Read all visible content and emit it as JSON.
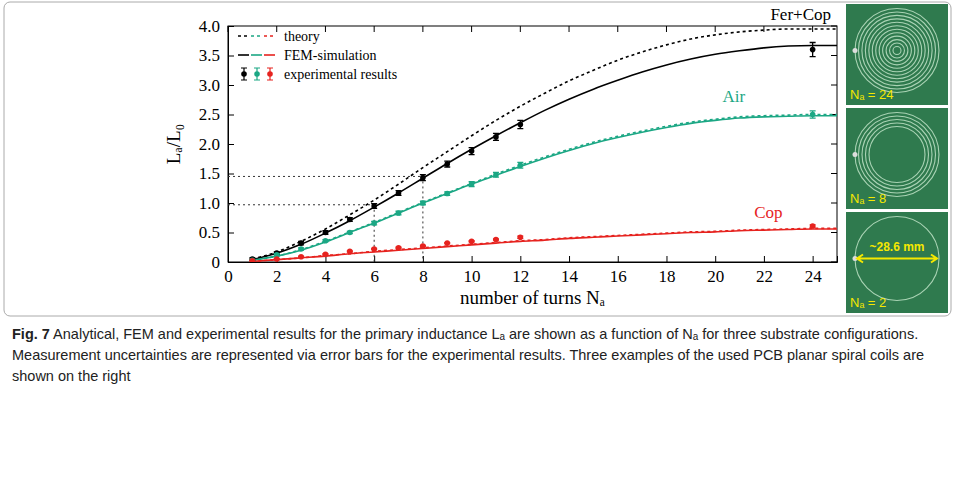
{
  "chart_data": {
    "type": "line",
    "x_label": "number of turns Nₐ",
    "y_label": "Lₐ/L₀",
    "xlim": [
      0,
      25
    ],
    "ylim": [
      0,
      4
    ],
    "xticks": [
      0,
      2,
      4,
      6,
      8,
      10,
      12,
      14,
      16,
      18,
      20,
      22,
      24
    ],
    "yticks": [
      0,
      0.5,
      {
        "value": 1,
        "label": "1.0"
      },
      1.5,
      {
        "value": 2,
        "label": "2.0"
      },
      2.5,
      {
        "value": 3,
        "label": "3.0"
      },
      3.5,
      {
        "value": 4,
        "label": "4.0"
      }
    ],
    "legend": "upper left",
    "groups": [
      {
        "name": "Fer+Cop",
        "color": "#000000"
      },
      {
        "name": "Air",
        "color": "#1ba784"
      },
      {
        "name": "Cop",
        "color": "#e6231f"
      }
    ],
    "guides": [
      {
        "x": 6,
        "y": 0.97
      },
      {
        "x": 8,
        "y": 1.45
      }
    ],
    "series": [
      {
        "name": "theory",
        "type": "line",
        "line_style": "dotted",
        "curves": [
          {
            "color": "#000000",
            "x": [
              1,
              2,
              3,
              4,
              5,
              6,
              7,
              8,
              9,
              10,
              11,
              12,
              13,
              14,
              15,
              16,
              17,
              18,
              19,
              20,
              21,
              22,
              23,
              24,
              25
            ],
            "values": [
              0.05,
              0.17,
              0.35,
              0.56,
              0.8,
              1.05,
              1.32,
              1.6,
              1.87,
              2.14,
              2.4,
              2.64,
              2.86,
              3.07,
              3.25,
              3.42,
              3.56,
              3.68,
              3.78,
              3.85,
              3.9,
              3.93,
              3.95,
              3.95,
              3.95
            ]
          },
          {
            "color": "#1ba784",
            "x": [
              1,
              2,
              3,
              4,
              5,
              6,
              7,
              8,
              9,
              10,
              11,
              12,
              13,
              14,
              15,
              16,
              17,
              18,
              19,
              20,
              21,
              22,
              23,
              24,
              25
            ],
            "values": [
              0.03,
              0.1,
              0.21,
              0.35,
              0.51,
              0.67,
              0.84,
              1.01,
              1.17,
              1.33,
              1.49,
              1.64,
              1.78,
              1.91,
              2.03,
              2.13,
              2.22,
              2.3,
              2.37,
              2.42,
              2.46,
              2.48,
              2.49,
              2.5,
              2.5
            ]
          },
          {
            "color": "#e6231f",
            "x": [
              1,
              2,
              3,
              4,
              5,
              6,
              7,
              8,
              9,
              10,
              11,
              12,
              13,
              14,
              15,
              16,
              17,
              18,
              19,
              20,
              21,
              22,
              23,
              24,
              25
            ],
            "values": [
              0.01,
              0.04,
              0.07,
              0.11,
              0.14,
              0.18,
              0.21,
              0.24,
              0.27,
              0.3,
              0.33,
              0.36,
              0.38,
              0.41,
              0.43,
              0.45,
              0.47,
              0.49,
              0.51,
              0.52,
              0.54,
              0.55,
              0.56,
              0.57,
              0.57
            ]
          }
        ]
      },
      {
        "name": "FEM-simulation",
        "type": "line",
        "line_style": "solid",
        "curves": [
          {
            "color": "#000000",
            "x": [
              1,
              2,
              3,
              4,
              5,
              6,
              7,
              8,
              9,
              10,
              11,
              12,
              13,
              14,
              15,
              16,
              17,
              18,
              19,
              20,
              21,
              22,
              23,
              24,
              25
            ],
            "values": [
              0.04,
              0.15,
              0.3,
              0.49,
              0.7,
              0.93,
              1.17,
              1.42,
              1.67,
              1.91,
              2.14,
              2.36,
              2.57,
              2.76,
              2.93,
              3.08,
              3.22,
              3.34,
              3.44,
              3.52,
              3.58,
              3.63,
              3.66,
              3.67,
              3.67
            ]
          },
          {
            "color": "#1ba784",
            "x": [
              1,
              2,
              3,
              4,
              5,
              6,
              7,
              8,
              9,
              10,
              11,
              12,
              13,
              14,
              15,
              16,
              17,
              18,
              19,
              20,
              21,
              22,
              23,
              24,
              25
            ],
            "values": [
              0.03,
              0.1,
              0.2,
              0.34,
              0.5,
              0.66,
              0.83,
              1.0,
              1.16,
              1.32,
              1.47,
              1.62,
              1.76,
              1.89,
              2.01,
              2.11,
              2.2,
              2.28,
              2.35,
              2.4,
              2.44,
              2.46,
              2.47,
              2.48,
              2.48
            ]
          },
          {
            "color": "#e6231f",
            "x": [
              1,
              2,
              3,
              4,
              5,
              6,
              7,
              8,
              9,
              10,
              11,
              12,
              13,
              14,
              15,
              16,
              17,
              18,
              19,
              20,
              21,
              22,
              23,
              24,
              25
            ],
            "values": [
              0.01,
              0.04,
              0.07,
              0.1,
              0.14,
              0.17,
              0.2,
              0.23,
              0.26,
              0.29,
              0.32,
              0.35,
              0.37,
              0.4,
              0.42,
              0.44,
              0.46,
              0.48,
              0.5,
              0.51,
              0.53,
              0.54,
              0.55,
              0.56,
              0.56
            ]
          }
        ]
      },
      {
        "name": "experimental results",
        "type": "scatter",
        "marker": "circle",
        "curves": [
          {
            "color": "#000000",
            "x": [
              1,
              2,
              3,
              4,
              5,
              6,
              7,
              8,
              9,
              10,
              11,
              12,
              24
            ],
            "values": [
              0.05,
              0.15,
              0.32,
              0.5,
              0.72,
              0.95,
              1.17,
              1.43,
              1.66,
              1.88,
              2.12,
              2.33,
              3.6
            ],
            "errors": [
              0.02,
              0.02,
              0.03,
              0.03,
              0.03,
              0.04,
              0.04,
              0.05,
              0.05,
              0.06,
              0.06,
              0.07,
              0.12
            ]
          },
          {
            "color": "#1ba784",
            "x": [
              1,
              2,
              3,
              4,
              5,
              6,
              7,
              8,
              9,
              10,
              11,
              12,
              24
            ],
            "values": [
              0.03,
              0.12,
              0.22,
              0.36,
              0.5,
              0.66,
              0.83,
              1.0,
              1.16,
              1.32,
              1.48,
              1.64,
              2.5
            ],
            "errors": [
              0.01,
              0.02,
              0.02,
              0.02,
              0.02,
              0.03,
              0.03,
              0.03,
              0.03,
              0.04,
              0.04,
              0.05,
              0.06
            ]
          },
          {
            "color": "#e6231f",
            "x": [
              1,
              2,
              3,
              4,
              5,
              6,
              7,
              8,
              9,
              10,
              11,
              12,
              24
            ],
            "values": [
              0.02,
              0.05,
              0.09,
              0.13,
              0.18,
              0.22,
              0.24,
              0.27,
              0.32,
              0.35,
              0.38,
              0.42,
              0.61
            ],
            "errors": [
              0.01,
              0.01,
              0.01,
              0.01,
              0.01,
              0.01,
              0.01,
              0.01,
              0.01,
              0.01,
              0.01,
              0.02,
              0.02
            ]
          }
        ]
      }
    ]
  },
  "photos": [
    {
      "label": "Nₐ = 24"
    },
    {
      "label": "Nₐ = 8"
    },
    {
      "label": "Nₐ = 2",
      "dimension": "~28.6 mm"
    }
  ],
  "caption": {
    "label": "Fig. 7",
    "text": "Analytical, FEM and experimental results for the primary inductance Lₐ are shown as a function of Nₐ for three substrate configurations. Measurement uncertainties are represented via error bars for the experimental results. Three examples of the used PCB planar spiral coils are shown on the right"
  }
}
